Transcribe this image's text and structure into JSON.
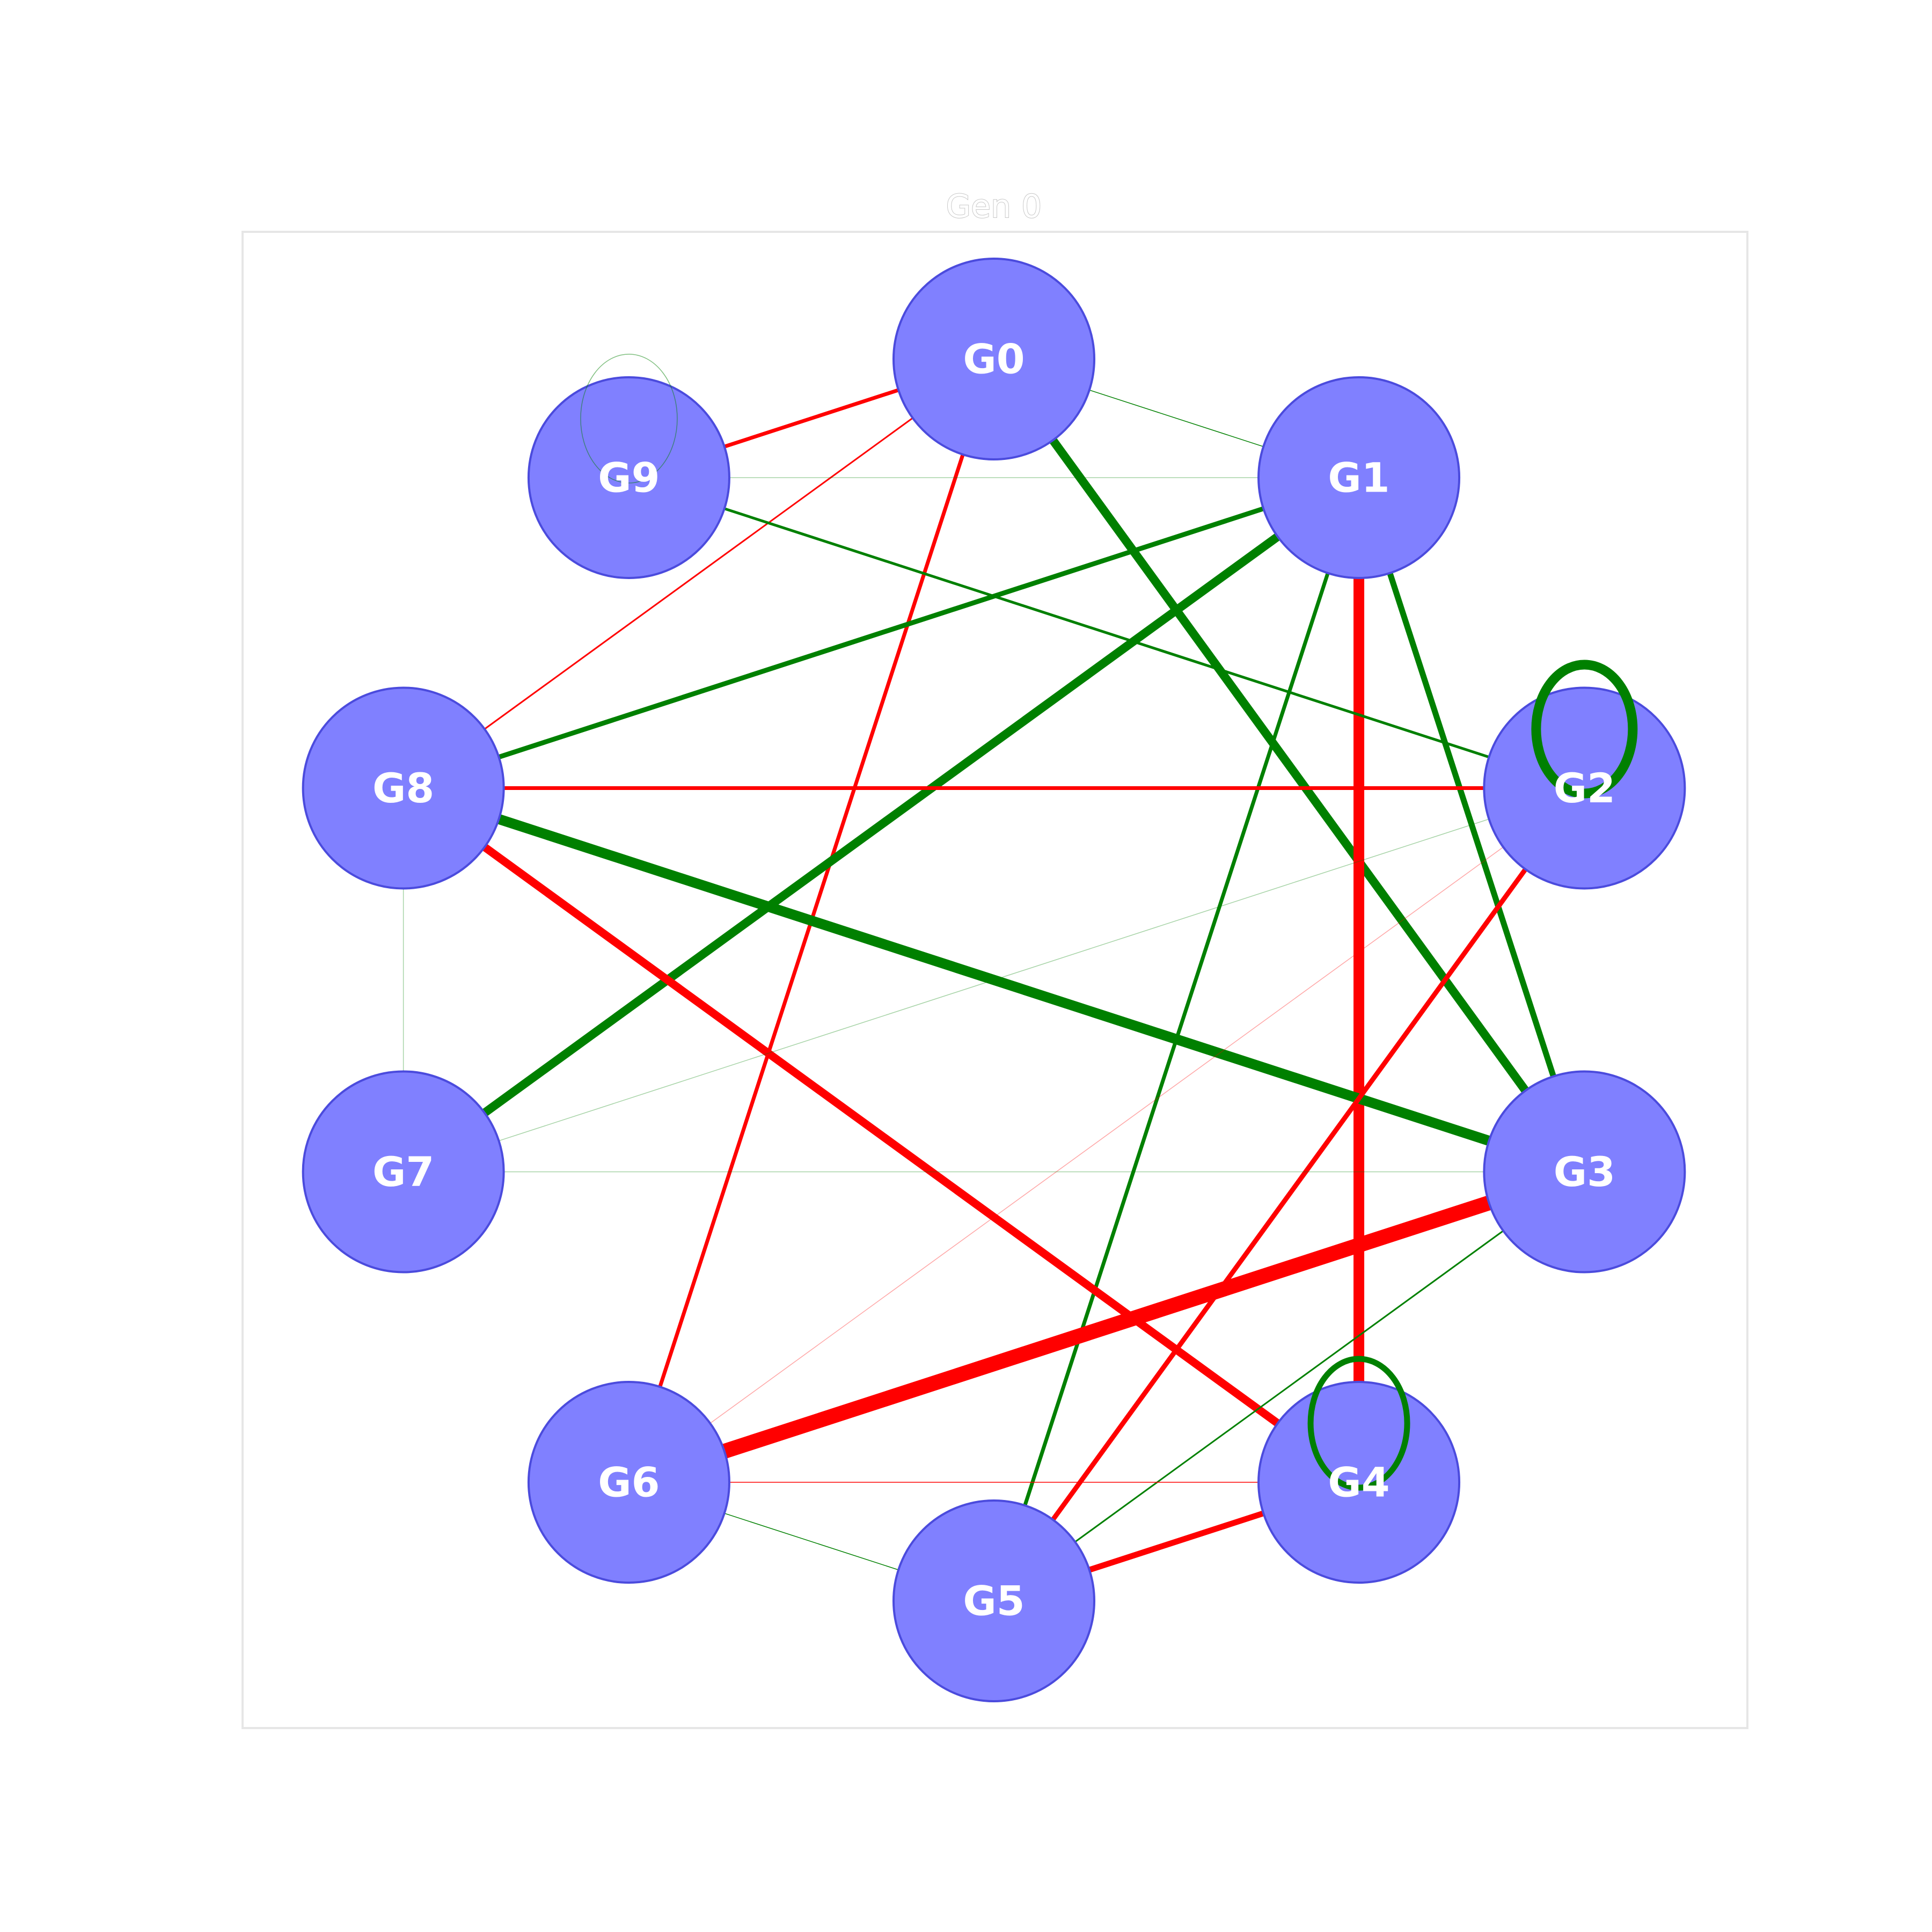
{
  "title": "Gen 0",
  "colors": {
    "node_fill": "#8080ff",
    "node_stroke": "#4b4bdd",
    "positive_edge": "#008000",
    "negative_edge": "#ff0000",
    "label": "#ffffff",
    "frame": "#e6e6e6"
  },
  "nodes": [
    {
      "id": "G0",
      "label": "G0"
    },
    {
      "id": "G1",
      "label": "G1"
    },
    {
      "id": "G2",
      "label": "G2"
    },
    {
      "id": "G3",
      "label": "G3"
    },
    {
      "id": "G4",
      "label": "G4"
    },
    {
      "id": "G5",
      "label": "G5"
    },
    {
      "id": "G6",
      "label": "G6"
    },
    {
      "id": "G7",
      "label": "G7"
    },
    {
      "id": "G8",
      "label": "G8"
    },
    {
      "id": "G9",
      "label": "G9"
    }
  ],
  "edges": [
    {
      "source": "G0",
      "target": "G9",
      "sign": "negative",
      "weight": 0.35
    },
    {
      "source": "G0",
      "target": "G8",
      "sign": "negative",
      "weight": 0.15
    },
    {
      "source": "G0",
      "target": "G6",
      "sign": "negative",
      "weight": 0.35
    },
    {
      "source": "G0",
      "target": "G1",
      "sign": "positive",
      "weight": 0.05
    },
    {
      "source": "G0",
      "target": "G3",
      "sign": "positive",
      "weight": 0.8
    },
    {
      "source": "G1",
      "target": "G8",
      "sign": "positive",
      "weight": 0.45
    },
    {
      "source": "G1",
      "target": "G7",
      "sign": "positive",
      "weight": 0.8
    },
    {
      "source": "G1",
      "target": "G5",
      "sign": "positive",
      "weight": 0.35
    },
    {
      "source": "G1",
      "target": "G3",
      "sign": "positive",
      "weight": 0.55
    },
    {
      "source": "G1",
      "target": "G4",
      "sign": "negative",
      "weight": 1.0
    },
    {
      "source": "G1",
      "target": "G9",
      "sign": "positive",
      "weight": 0.02
    },
    {
      "source": "G9",
      "target": "G2",
      "sign": "positive",
      "weight": 0.25
    },
    {
      "source": "G8",
      "target": "G2",
      "sign": "negative",
      "weight": 0.35
    },
    {
      "source": "G8",
      "target": "G3",
      "sign": "positive",
      "weight": 0.95
    },
    {
      "source": "G8",
      "target": "G4",
      "sign": "negative",
      "weight": 0.75
    },
    {
      "source": "G2",
      "target": "G5",
      "sign": "negative",
      "weight": 0.45
    },
    {
      "source": "G2",
      "target": "G6",
      "sign": "negative",
      "weight": 0.03
    },
    {
      "source": "G2",
      "target": "G7",
      "sign": "positive",
      "weight": 0.01
    },
    {
      "source": "G3",
      "target": "G6",
      "sign": "negative",
      "weight": 1.4
    },
    {
      "source": "G3",
      "target": "G5",
      "sign": "positive",
      "weight": 0.15
    },
    {
      "source": "G3",
      "target": "G7",
      "sign": "positive",
      "weight": 0.01
    },
    {
      "source": "G7",
      "target": "G8",
      "sign": "positive",
      "weight": 0.01
    },
    {
      "source": "G6",
      "target": "G4",
      "sign": "negative",
      "weight": 0.05
    },
    {
      "source": "G6",
      "target": "G5",
      "sign": "positive",
      "weight": 0.06
    },
    {
      "source": "G4",
      "target": "G5",
      "sign": "negative",
      "weight": 0.55
    }
  ],
  "loops": [
    {
      "node": "G2",
      "sign": "positive",
      "weight": 0.9
    },
    {
      "node": "G4",
      "sign": "positive",
      "weight": 0.55
    },
    {
      "node": "G9",
      "sign": "positive",
      "weight": 0.03
    }
  ]
}
